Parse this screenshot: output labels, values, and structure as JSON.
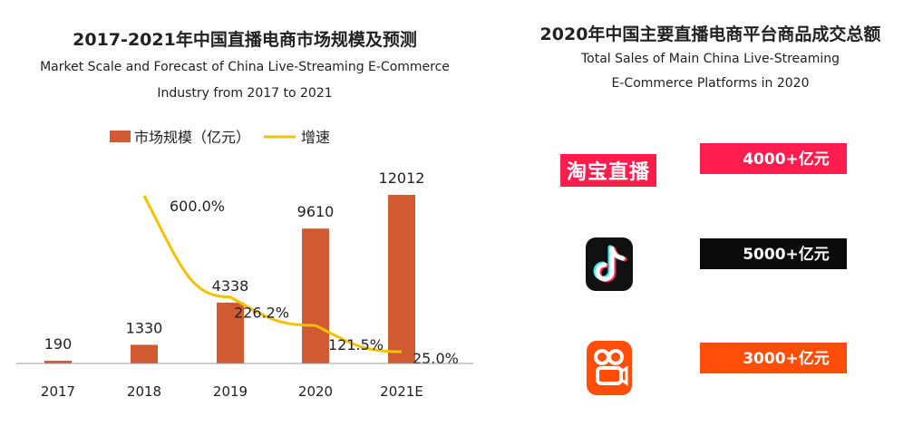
{
  "left": {
    "title_zh": "2017-2021年中国直播电商市场规模及预测",
    "title_en_line1": "Market Scale and Forecast of China Live-Streaming E-Commerce",
    "title_en_line2": "Industry from 2017 to 2021"
  },
  "right": {
    "title_zh": "2020年中国主要直播电商平台商品成交总额",
    "title_en_line1": "Total Sales of Main China Live-Streaming",
    "title_en_line2": "E-Commerce Platforms in 2020",
    "platforms": [
      {
        "logo_text": "淘宝直播",
        "logo_icon": "taobao-live-logo",
        "amount": "4000+亿元",
        "color": "#ff1d4e"
      },
      {
        "logo_text": "",
        "logo_icon": "douyin-logo",
        "amount": "5000+亿元",
        "color": "#0b0b0b"
      },
      {
        "logo_text": "",
        "logo_icon": "kuaishou-logo",
        "amount": "3000+亿元",
        "color": "#ff4e0a"
      }
    ]
  },
  "chart_data": {
    "type": "bar",
    "categories": [
      "2017",
      "2018",
      "2019",
      "2020",
      "2021E"
    ],
    "series": [
      {
        "name": "市场规模（亿元）",
        "type": "bar",
        "color": "#d05a32",
        "values": [
          190,
          1330,
          4338,
          9610,
          12012
        ],
        "labels": [
          "190",
          "1330",
          "4338",
          "9610",
          "12012"
        ]
      },
      {
        "name": "增速",
        "type": "line",
        "color": "#f2c200",
        "values": [
          null,
          600.0,
          226.2,
          121.5,
          25.0
        ],
        "labels": [
          "",
          "600.0%",
          "226.2%",
          "121.5%",
          "25.0%"
        ]
      }
    ],
    "ylim": [
      0,
      14000
    ],
    "legend_position": "top"
  }
}
